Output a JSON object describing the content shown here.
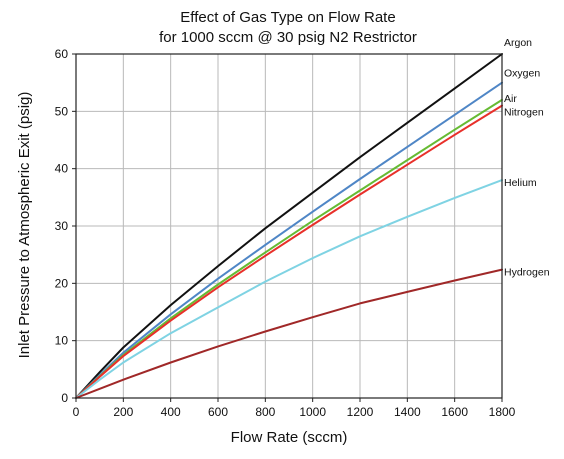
{
  "chart_data": {
    "type": "line",
    "title": "Effect of Gas Type on Flow Rate",
    "subtitle": "for 1000 sccm @ 30 psig N2 Restrictor",
    "xlabel": "Flow Rate (sccm)",
    "ylabel": "Inlet Pressure to Atmospheric Exit (psig)",
    "xlim": [
      0,
      1800
    ],
    "ylim": [
      0,
      60
    ],
    "xticks": [
      0,
      200,
      400,
      600,
      800,
      1000,
      1200,
      1400,
      1600,
      1800
    ],
    "yticks": [
      0,
      10,
      20,
      30,
      40,
      50,
      60
    ],
    "grid": true,
    "legend": "inline labels at right end of each line",
    "x": [
      0,
      100,
      200,
      400,
      600,
      800,
      1000,
      1200,
      1400,
      1600,
      1800
    ],
    "series": [
      {
        "name": "Argon",
        "color": "#111111",
        "values": [
          0,
          4.5,
          8.8,
          16.2,
          23.0,
          29.6,
          35.8,
          42.0,
          48.0,
          54.0,
          60.0
        ]
      },
      {
        "name": "Oxygen",
        "color": "#4f86c6",
        "values": [
          0,
          4.0,
          7.9,
          14.6,
          20.8,
          26.7,
          32.5,
          38.2,
          43.8,
          49.4,
          55.0
        ]
      },
      {
        "name": "Air",
        "color": "#66bb33",
        "values": [
          0,
          3.8,
          7.5,
          13.9,
          19.8,
          25.4,
          30.9,
          36.2,
          41.5,
          46.8,
          52.0
        ]
      },
      {
        "name": "Nitrogen",
        "color": "#e8302a",
        "values": [
          0,
          3.7,
          7.3,
          13.5,
          19.3,
          24.8,
          30.2,
          35.5,
          40.7,
          45.9,
          51.0
        ]
      },
      {
        "name": "Helium",
        "color": "#7fd3e3",
        "values": [
          0,
          3.2,
          6.2,
          11.3,
          15.8,
          20.3,
          24.4,
          28.2,
          31.6,
          34.9,
          38.0
        ]
      },
      {
        "name": "Hydrogen",
        "color": "#a02828",
        "values": [
          0,
          1.6,
          3.2,
          6.2,
          9.0,
          11.6,
          14.1,
          16.5,
          18.5,
          20.5,
          22.4
        ]
      }
    ]
  }
}
